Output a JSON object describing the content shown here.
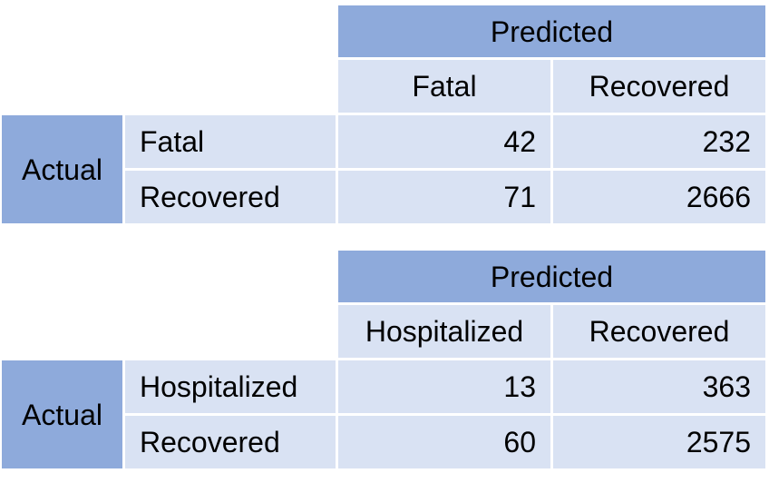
{
  "matrices": [
    {
      "predicted_label": "Predicted",
      "actual_label": "Actual",
      "columns": [
        "Fatal",
        "Recovered"
      ],
      "rows": [
        {
          "label": "Fatal",
          "values": [
            "42",
            "232"
          ]
        },
        {
          "label": "Recovered",
          "values": [
            "71",
            "2666"
          ]
        }
      ]
    },
    {
      "predicted_label": "Predicted",
      "actual_label": "Actual",
      "columns": [
        "Hospitalized",
        "Recovered"
      ],
      "rows": [
        {
          "label": "Hospitalized",
          "values": [
            "13",
            "363"
          ]
        },
        {
          "label": "Recovered",
          "values": [
            "60",
            "2575"
          ]
        }
      ]
    }
  ],
  "colors": {
    "header_blue": "#8eaadb",
    "cell_light_blue": "#d9e2f3"
  }
}
